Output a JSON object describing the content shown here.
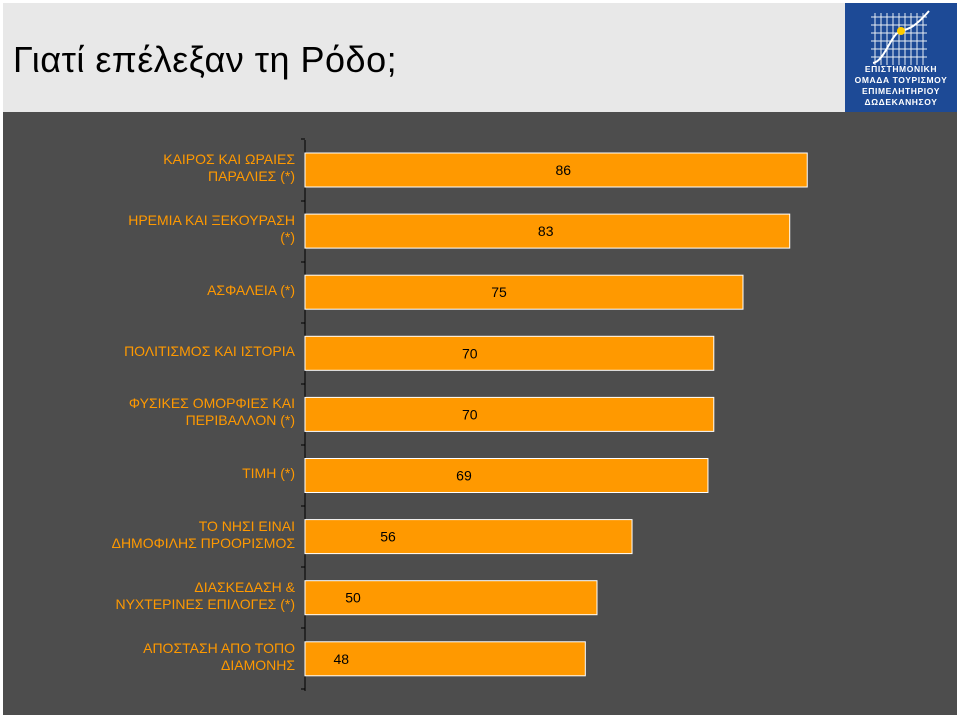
{
  "title": "Γιατί επέλεξαν τη Ρόδο;",
  "logo": {
    "lines": [
      "ΕΠΙΣΤΗΜΟΝΙΚΗ",
      "ΟΜΑΔΑ ΤΟΥΡΙΣΜΟΥ",
      "ΕΠΙΜΕΛΗΤΗΡΙΟΥ",
      "ΔΩΔΕΚΑΝΗΣΟΥ"
    ]
  },
  "colors": {
    "bar": "#ff9900",
    "bar_edge": "#ffffff",
    "panel": "#4d4d4d",
    "label": "#ff9900",
    "value_label": "#000000",
    "logo_bg": "#1d4a96"
  },
  "chart_data": {
    "type": "bar",
    "orientation": "horizontal",
    "categories": [
      [
        "ΚΑΙΡΟΣ ΚΑΙ ΩΡΑΙΕΣ",
        "ΠΑΡΑΛΙΕΣ (*)"
      ],
      [
        "ΗΡΕΜΙΑ ΚΑΙ ΞΕΚΟΥΡΑΣΗ",
        "(*)"
      ],
      [
        "ΑΣΦΑΛΕΙΑ (*)"
      ],
      [
        "ΠΟΛΙΤΙΣΜΟΣ ΚΑΙ ΙΣΤΟΡΙΑ"
      ],
      [
        "ΦΥΣΙΚΕΣ ΟΜΟΡΦΙΕΣ ΚΑΙ",
        "ΠΕΡΙΒΑΛΛΟΝ (*)"
      ],
      [
        "ΤΙΜΗ (*)"
      ],
      [
        "ΤΟ ΝΗΣΙ ΕΙΝΑΙ",
        "ΔΗΜΟΦΙΛΗΣ ΠΡΟΟΡΙΣΜΟΣ"
      ],
      [
        "ΔΙΑΣΚΕΔΑΣΗ &",
        "ΝΥΧΤΕΡΙΝΕΣ ΕΠΙΛΟΓΕΣ (*)"
      ],
      [
        "ΑΠΟΣΤΑΣΗ ΑΠΟ ΤΟΠΟ",
        "ΔΙΑΜΟΝΗΣ"
      ]
    ],
    "values": [
      86,
      83,
      75,
      70,
      70,
      69,
      56,
      50,
      48
    ],
    "value_labels": [
      "86",
      "83",
      "75",
      "70",
      "70",
      "69",
      "56",
      "50",
      "48"
    ],
    "xlim": [
      0,
      100
    ],
    "grid": false,
    "legend": "none"
  }
}
